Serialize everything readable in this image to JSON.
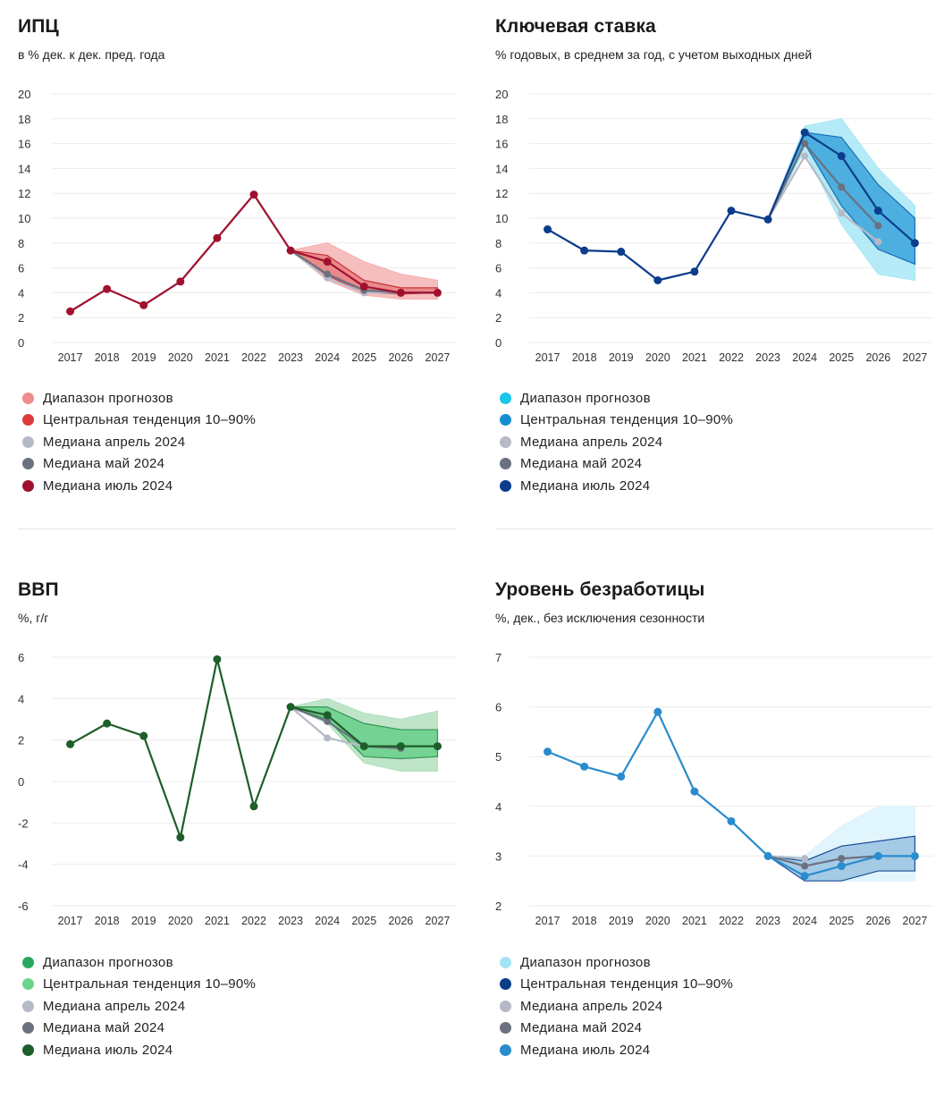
{
  "charts": [
    {
      "title": "ИПЦ",
      "subtitle": "в % дек. к дек. пред. года",
      "legend": [
        "Диапазон прогнозов",
        "Центральная тенденция 10–90%",
        "Медиана апрель 2024",
        "Медиана май 2024",
        "Медиана июль 2024"
      ],
      "colors": {
        "range": "#f5b3b3",
        "rangeLegend": "#f28b8b",
        "band": "#e88080",
        "bandLegend": "#dc3c3c",
        "bandStroke": "#c8323c",
        "april": "#b6bac6",
        "may": "#6b717f",
        "july": "#a0102e"
      },
      "chart_data": {
        "type": "line",
        "x": [
          2017,
          2018,
          2019,
          2020,
          2021,
          2022,
          2023,
          2024,
          2025,
          2026,
          2027
        ],
        "ylim": [
          0,
          20
        ],
        "yticks": [
          "0",
          "2",
          "4",
          "6",
          "8",
          "10",
          "12",
          "14",
          "16",
          "18",
          "20"
        ],
        "history": [
          2.5,
          4.3,
          3.0,
          4.9,
          8.4,
          11.9,
          7.4
        ],
        "forecast_x": [
          2023,
          2024,
          2025,
          2026,
          2027
        ],
        "range_low": [
          7.4,
          5.0,
          3.8,
          3.5,
          3.5
        ],
        "range_high": [
          7.4,
          8.0,
          6.5,
          5.5,
          5.0
        ],
        "band_low": [
          7.4,
          5.4,
          4.0,
          3.9,
          4.0
        ],
        "band_high": [
          7.4,
          7.0,
          5.0,
          4.4,
          4.4
        ],
        "median_april": [
          7.4,
          5.2,
          4.0,
          4.0,
          4.0
        ],
        "median_may": [
          7.4,
          5.5,
          4.2,
          4.0,
          4.0
        ],
        "median_july": [
          7.4,
          6.5,
          4.5,
          4.0,
          4.0
        ]
      }
    },
    {
      "title": "Ключевая ставка",
      "subtitle": "% годовых, в среднем за год, с учетом выходных дней",
      "legend": [
        "Диапазон прогнозов",
        "Центральная тенденция 10–90%",
        "Медиана апрель 2024",
        "Медиана май 2024",
        "Медиана июль 2024"
      ],
      "colors": {
        "range": "#a8e8f6",
        "rangeLegend": "#1cc6ea",
        "band": "#3aa4dc",
        "bandLegend": "#188ed2",
        "bandStroke": "#1a6fb2",
        "april": "#b6bac6",
        "may": "#6b717f",
        "july": "#0c3c8c"
      },
      "chart_data": {
        "type": "line",
        "x": [
          2017,
          2018,
          2019,
          2020,
          2021,
          2022,
          2023,
          2024,
          2025,
          2026,
          2027
        ],
        "ylim": [
          0,
          20
        ],
        "yticks": [
          "0",
          "2",
          "4",
          "6",
          "8",
          "10",
          "12",
          "14",
          "16",
          "18",
          "20"
        ],
        "history": [
          9.1,
          7.4,
          7.3,
          5.0,
          5.7,
          10.6,
          9.9
        ],
        "forecast_x": [
          2023,
          2024,
          2025,
          2026,
          2027
        ],
        "range_low": [
          9.9,
          15.5,
          9.5,
          5.5,
          5.0
        ],
        "range_high": [
          9.9,
          17.4,
          18.0,
          14.0,
          11.0
        ],
        "band_low": [
          9.9,
          16.0,
          11.0,
          7.5,
          6.3
        ],
        "band_high": [
          9.9,
          16.9,
          16.5,
          12.7,
          10.0
        ],
        "median_april": [
          9.9,
          15.0,
          10.4,
          8.1,
          null
        ],
        "median_may": [
          9.9,
          16.0,
          12.5,
          9.4,
          null
        ],
        "median_july": [
          9.9,
          16.9,
          15.0,
          10.6,
          8.0
        ]
      }
    },
    {
      "title": "ВВП",
      "subtitle": "%, г/г",
      "legend": [
        "Диапазон прогнозов",
        "Центральная тенденция 10–90%",
        "Медиана апрель 2024",
        "Медиана май 2024",
        "Медиана июль 2024"
      ],
      "colors": {
        "range": "#b4e0bf",
        "rangeLegend": "#2aa85c",
        "band": "#66d088",
        "bandLegend": "#6cd48c",
        "bandStroke": "#3a9456",
        "april": "#b6bac6",
        "may": "#6b717f",
        "july": "#1d5e2a"
      },
      "chart_data": {
        "type": "line",
        "x": [
          2017,
          2018,
          2019,
          2020,
          2021,
          2022,
          2023,
          2024,
          2025,
          2026,
          2027
        ],
        "ylim": [
          -6,
          6
        ],
        "yticks": [
          "-6",
          "-4",
          "-2",
          "0",
          "2",
          "4",
          "6"
        ],
        "history": [
          1.8,
          2.8,
          2.2,
          -2.7,
          5.9,
          -1.2,
          3.6
        ],
        "forecast_x": [
          2023,
          2024,
          2025,
          2026,
          2027
        ],
        "range_low": [
          3.6,
          2.8,
          0.9,
          0.5,
          0.5
        ],
        "range_high": [
          3.6,
          4.0,
          3.3,
          3.0,
          3.4
        ],
        "band_low": [
          3.6,
          3.0,
          1.2,
          1.1,
          1.2
        ],
        "band_high": [
          3.6,
          3.6,
          2.8,
          2.5,
          2.5
        ],
        "median_april": [
          3.6,
          2.1,
          1.7,
          1.6,
          null
        ],
        "median_may": [
          3.6,
          2.9,
          1.7,
          1.6,
          null
        ],
        "median_july": [
          3.6,
          3.2,
          1.7,
          1.7,
          1.7
        ]
      }
    },
    {
      "title": "Уровень безработицы",
      "subtitle": "%, дек., без исключения сезонности",
      "legend": [
        "Диапазон прогнозов",
        "Центральная тенденция 10–90%",
        "Медиана апрель 2024",
        "Медиана май 2024",
        "Медиана июль 2024"
      ],
      "colors": {
        "range": "#dcf3fb",
        "rangeLegend": "#a4e4f6",
        "band": "#9ac2e2",
        "bandLegend": "#0c3c8c",
        "bandStroke": "#1a4e94",
        "april": "#b6bac6",
        "may": "#6b717f",
        "july": "#2a8ccc"
      },
      "chart_data": {
        "type": "line",
        "x": [
          2017,
          2018,
          2019,
          2020,
          2021,
          2022,
          2023,
          2024,
          2025,
          2026,
          2027
        ],
        "ylim": [
          2,
          7
        ],
        "yticks": [
          "2",
          "3",
          "4",
          "5",
          "6",
          "7"
        ],
        "history": [
          5.1,
          4.8,
          4.6,
          5.9,
          4.3,
          3.7,
          3.0
        ],
        "forecast_x": [
          2023,
          2024,
          2025,
          2026,
          2027
        ],
        "range_low": [
          3.0,
          2.5,
          2.5,
          2.5,
          2.5
        ],
        "range_high": [
          3.0,
          3.0,
          3.6,
          4.0,
          4.0
        ],
        "band_low": [
          3.0,
          2.5,
          2.5,
          2.7,
          2.7
        ],
        "band_high": [
          3.0,
          2.9,
          3.2,
          3.3,
          3.4
        ],
        "median_april": [
          3.0,
          2.95,
          null,
          null,
          null
        ],
        "median_may": [
          3.0,
          2.8,
          2.95,
          3.0,
          null
        ],
        "median_july": [
          3.0,
          2.6,
          2.8,
          3.0,
          3.0
        ]
      }
    }
  ]
}
